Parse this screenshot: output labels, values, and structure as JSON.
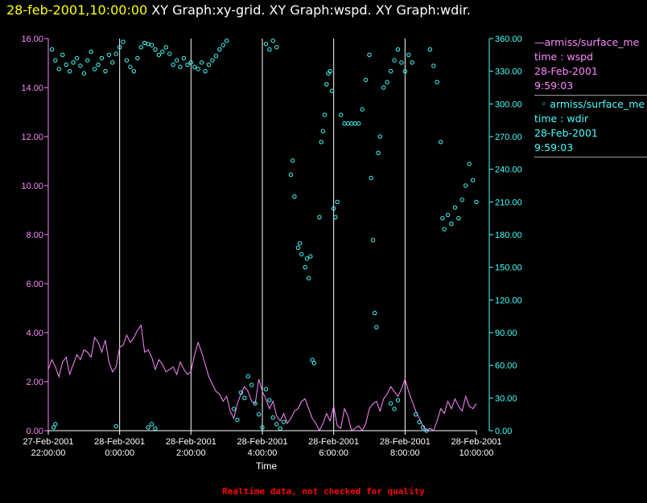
{
  "header": {
    "timestamp": "28-feb-2001,10:00:00",
    "graphs": "XY Graph:xy-grid.  XY Graph:wspd.  XY Graph:wdir."
  },
  "legend": {
    "wspd": {
      "name": "armiss/surface_me",
      "var": "time : wspd",
      "date": "28-Feb-2001",
      "time": "9:59:03"
    },
    "wdir": {
      "name": "armiss/surface_me",
      "var": "time : wdir",
      "date": "28-Feb-2001",
      "time": "9:59:03"
    }
  },
  "footer": "Realtime data, not checked for quality",
  "colors": {
    "wspd": "#ff88ff",
    "wdir": "#44ffff",
    "grid": "#ffffff",
    "left_axis": "#ff88ff",
    "right_axis": "#44ffff"
  },
  "chart_data": {
    "type": "line+scatter",
    "xlabel": "Time",
    "x_range_hours": [
      -2,
      10
    ],
    "x_ticks": [
      {
        "hour": -2,
        "date": "27-Feb-2001",
        "time": "22:00:00"
      },
      {
        "hour": 0,
        "date": "28-Feb-2001",
        "time": "0:00:00"
      },
      {
        "hour": 2,
        "date": "28-Feb-2001",
        "time": "2:00:00"
      },
      {
        "hour": 4,
        "date": "28-Feb-2001",
        "time": "4:00:00"
      },
      {
        "hour": 6,
        "date": "28-Feb-2001",
        "time": "6:00:00"
      },
      {
        "hour": 8,
        "date": "28-Feb-2001",
        "time": "8:00:00"
      },
      {
        "hour": 10,
        "date": "28-Feb-2001",
        "time": "10:00:00"
      }
    ],
    "left_axis": {
      "ylim": [
        0,
        16
      ],
      "ticks": [
        "0.00",
        "2.00",
        "4.00",
        "6.00",
        "8.00",
        "10.00",
        "12.00",
        "14.00",
        "16.00"
      ]
    },
    "right_axis": {
      "ylim": [
        0,
        360
      ],
      "ticks": [
        "0.00",
        "30.00",
        "60.00",
        "90.00",
        "120.00",
        "150.00",
        "180.00",
        "210.00",
        "240.00",
        "270.00",
        "300.00",
        "330.00",
        "360.00"
      ]
    },
    "series": [
      {
        "name": "wspd",
        "style": "line",
        "axis": "left",
        "points": [
          [
            -2,
            2.5
          ],
          [
            -1.9,
            2.9
          ],
          [
            -1.8,
            2.6
          ],
          [
            -1.7,
            2.2
          ],
          [
            -1.6,
            2.8
          ],
          [
            -1.5,
            3.0
          ],
          [
            -1.4,
            2.3
          ],
          [
            -1.3,
            2.7
          ],
          [
            -1.2,
            3.1
          ],
          [
            -1.1,
            2.9
          ],
          [
            -1.0,
            3.3
          ],
          [
            -0.9,
            3.2
          ],
          [
            -0.8,
            3.0
          ],
          [
            -0.7,
            3.8
          ],
          [
            -0.6,
            3.6
          ],
          [
            -0.5,
            3.2
          ],
          [
            -0.4,
            3.7
          ],
          [
            -0.3,
            2.8
          ],
          [
            -0.2,
            2.4
          ],
          [
            -0.1,
            2.6
          ],
          [
            0,
            3.4
          ],
          [
            0.1,
            3.5
          ],
          [
            0.2,
            3.9
          ],
          [
            0.3,
            3.6
          ],
          [
            0.4,
            3.8
          ],
          [
            0.5,
            4.1
          ],
          [
            0.6,
            4.3
          ],
          [
            0.7,
            3.2
          ],
          [
            0.8,
            3.3
          ],
          [
            0.9,
            3.0
          ],
          [
            1.0,
            2.5
          ],
          [
            1.1,
            2.9
          ],
          [
            1.2,
            2.7
          ],
          [
            1.3,
            2.4
          ],
          [
            1.4,
            2.5
          ],
          [
            1.5,
            2.6
          ],
          [
            1.6,
            2.3
          ],
          [
            1.7,
            2.8
          ],
          [
            1.8,
            2.5
          ],
          [
            1.9,
            2.3
          ],
          [
            2.0,
            2.4
          ],
          [
            2.1,
            3.1
          ],
          [
            2.2,
            3.6
          ],
          [
            2.3,
            3.2
          ],
          [
            2.4,
            2.7
          ],
          [
            2.5,
            2.2
          ],
          [
            2.6,
            1.9
          ],
          [
            2.7,
            1.6
          ],
          [
            2.8,
            1.5
          ],
          [
            2.9,
            1.2
          ],
          [
            3.0,
            1.4
          ],
          [
            3.1,
            0.8
          ],
          [
            3.2,
            0.5
          ],
          [
            3.3,
            1.1
          ],
          [
            3.4,
            1.5
          ],
          [
            3.5,
            1.8
          ],
          [
            3.6,
            1.6
          ],
          [
            3.7,
            1.2
          ],
          [
            3.8,
            1.1
          ],
          [
            3.9,
            2.1
          ],
          [
            4.0,
            1.6
          ],
          [
            4.1,
            1.3
          ],
          [
            4.2,
            0.9
          ],
          [
            4.3,
            1.2
          ],
          [
            4.4,
            0.6
          ],
          [
            4.5,
            0.4
          ],
          [
            4.6,
            0.7
          ],
          [
            4.7,
            0.3
          ],
          [
            4.8,
            0.5
          ],
          [
            4.9,
            0.8
          ],
          [
            5.0,
            0.9
          ],
          [
            5.1,
            1.2
          ],
          [
            5.2,
            1.3
          ],
          [
            5.3,
            0.9
          ],
          [
            5.4,
            0.5
          ],
          [
            5.5,
            0.3
          ],
          [
            5.6,
            0.0
          ],
          [
            5.7,
            0.3
          ],
          [
            5.8,
            0.7
          ],
          [
            5.9,
            0.4
          ],
          [
            6.0,
            1.0
          ],
          [
            6.1,
            0.2
          ],
          [
            6.2,
            0.1
          ],
          [
            6.3,
            0.9
          ],
          [
            6.4,
            0.6
          ],
          [
            6.5,
            0.0
          ],
          [
            6.6,
            0.1
          ],
          [
            6.7,
            0.2
          ],
          [
            6.8,
            0.0
          ],
          [
            6.9,
            0.3
          ],
          [
            7.0,
            0.9
          ],
          [
            7.1,
            1.1
          ],
          [
            7.2,
            1.2
          ],
          [
            7.3,
            0.8
          ],
          [
            7.4,
            1.3
          ],
          [
            7.5,
            1.5
          ],
          [
            7.6,
            1.8
          ],
          [
            7.7,
            1.6
          ],
          [
            7.8,
            1.4
          ],
          [
            7.9,
            1.7
          ],
          [
            8.0,
            2.1
          ],
          [
            8.1,
            1.6
          ],
          [
            8.2,
            1.2
          ],
          [
            8.3,
            0.8
          ],
          [
            8.4,
            0.5
          ],
          [
            8.5,
            0.2
          ],
          [
            8.6,
            0.0
          ],
          [
            8.7,
            0.1
          ],
          [
            8.8,
            0.0
          ],
          [
            8.9,
            0.4
          ],
          [
            9.0,
            0.9
          ],
          [
            9.1,
            0.7
          ],
          [
            9.2,
            1.2
          ],
          [
            9.3,
            0.9
          ],
          [
            9.4,
            1.3
          ],
          [
            9.5,
            1.0
          ],
          [
            9.6,
            0.8
          ],
          [
            9.7,
            1.4
          ],
          [
            9.8,
            1.0
          ],
          [
            9.9,
            0.9
          ],
          [
            10.0,
            1.1
          ]
        ]
      },
      {
        "name": "wdir",
        "style": "scatter",
        "axis": "right",
        "points": [
          [
            -1.9,
            350
          ],
          [
            -1.8,
            340
          ],
          [
            -1.7,
            332
          ],
          [
            -1.6,
            345
          ],
          [
            -1.5,
            336
          ],
          [
            -1.4,
            330
          ],
          [
            -1.3,
            338
          ],
          [
            -1.2,
            342
          ],
          [
            -1.1,
            335
          ],
          [
            -1.0,
            328
          ],
          [
            -0.9,
            340
          ],
          [
            -0.8,
            348
          ],
          [
            -0.7,
            332
          ],
          [
            -0.6,
            336
          ],
          [
            -0.5,
            342
          ],
          [
            -0.4,
            330
          ],
          [
            -0.3,
            345
          ],
          [
            -0.2,
            338
          ],
          [
            -0.1,
            346
          ],
          [
            0.0,
            352
          ],
          [
            0.1,
            357
          ],
          [
            0.2,
            340
          ],
          [
            0.3,
            334
          ],
          [
            0.4,
            330
          ],
          [
            0.5,
            342
          ],
          [
            0.6,
            352
          ],
          [
            0.7,
            356
          ],
          [
            0.8,
            355
          ],
          [
            0.9,
            354
          ],
          [
            1.0,
            350
          ],
          [
            1.1,
            345
          ],
          [
            1.2,
            348
          ],
          [
            1.3,
            352
          ],
          [
            1.4,
            346
          ],
          [
            1.5,
            336
          ],
          [
            1.6,
            340
          ],
          [
            1.7,
            334
          ],
          [
            1.8,
            342
          ],
          [
            1.9,
            336
          ],
          [
            2.0,
            338
          ],
          [
            2.1,
            334
          ],
          [
            2.2,
            332
          ],
          [
            2.3,
            338
          ],
          [
            2.4,
            330
          ],
          [
            2.5,
            336
          ],
          [
            2.6,
            340
          ],
          [
            2.7,
            344
          ],
          [
            2.8,
            350
          ],
          [
            2.9,
            354
          ],
          [
            3.0,
            358
          ],
          [
            -1.85,
            3
          ],
          [
            -1.8,
            6
          ],
          [
            -0.1,
            4
          ],
          [
            0.8,
            3
          ],
          [
            0.9,
            6
          ],
          [
            1.0,
            2
          ],
          [
            3.2,
            20
          ],
          [
            3.3,
            10
          ],
          [
            3.4,
            35
          ],
          [
            3.5,
            30
          ],
          [
            3.6,
            50
          ],
          [
            3.7,
            42
          ],
          [
            3.8,
            25
          ],
          [
            3.9,
            15
          ],
          [
            4.0,
            3
          ],
          [
            4.1,
            38
          ],
          [
            4.2,
            28
          ],
          [
            4.3,
            12
          ],
          [
            4.4,
            6
          ],
          [
            4.5,
            2
          ],
          [
            4.6,
            8
          ],
          [
            4.1,
            355
          ],
          [
            4.2,
            350
          ],
          [
            4.3,
            358
          ],
          [
            4.4,
            352
          ],
          [
            4.8,
            235
          ],
          [
            4.85,
            248
          ],
          [
            4.9,
            215
          ],
          [
            5.0,
            168
          ],
          [
            5.05,
            172
          ],
          [
            5.1,
            162
          ],
          [
            5.2,
            150
          ],
          [
            5.25,
            158
          ],
          [
            5.3,
            140
          ],
          [
            5.35,
            160
          ],
          [
            5.4,
            65
          ],
          [
            5.45,
            62
          ],
          [
            5.6,
            196
          ],
          [
            5.65,
            265
          ],
          [
            5.7,
            275
          ],
          [
            5.75,
            290
          ],
          [
            5.8,
            318
          ],
          [
            5.85,
            328
          ],
          [
            5.9,
            330
          ],
          [
            5.95,
            312
          ],
          [
            6.0,
            204
          ],
          [
            6.05,
            196
          ],
          [
            6.1,
            210
          ],
          [
            6.2,
            290
          ],
          [
            6.3,
            282
          ],
          [
            6.4,
            282
          ],
          [
            6.5,
            282
          ],
          [
            6.6,
            282
          ],
          [
            6.7,
            282
          ],
          [
            6.8,
            295
          ],
          [
            6.9,
            322
          ],
          [
            7.0,
            345
          ],
          [
            7.05,
            232
          ],
          [
            7.1,
            175
          ],
          [
            7.15,
            108
          ],
          [
            7.2,
            95
          ],
          [
            7.25,
            255
          ],
          [
            7.3,
            270
          ],
          [
            7.4,
            315
          ],
          [
            7.5,
            320
          ],
          [
            7.6,
            330
          ],
          [
            7.7,
            340
          ],
          [
            7.8,
            350
          ],
          [
            7.9,
            338
          ],
          [
            8.0,
            330
          ],
          [
            8.1,
            345
          ],
          [
            8.2,
            338
          ],
          [
            7.6,
            25
          ],
          [
            7.7,
            20
          ],
          [
            7.8,
            28
          ],
          [
            8.3,
            15
          ],
          [
            8.4,
            8
          ],
          [
            8.5,
            3
          ],
          [
            8.6,
            0
          ],
          [
            8.7,
            350
          ],
          [
            8.8,
            335
          ],
          [
            8.9,
            320
          ],
          [
            9.0,
            265
          ],
          [
            9.05,
            195
          ],
          [
            9.1,
            185
          ],
          [
            9.2,
            198
          ],
          [
            9.3,
            190
          ],
          [
            9.4,
            205
          ],
          [
            9.5,
            195
          ],
          [
            9.6,
            212
          ],
          [
            9.7,
            225
          ],
          [
            9.8,
            245
          ],
          [
            9.9,
            230
          ],
          [
            10.0,
            210
          ]
        ]
      }
    ]
  }
}
